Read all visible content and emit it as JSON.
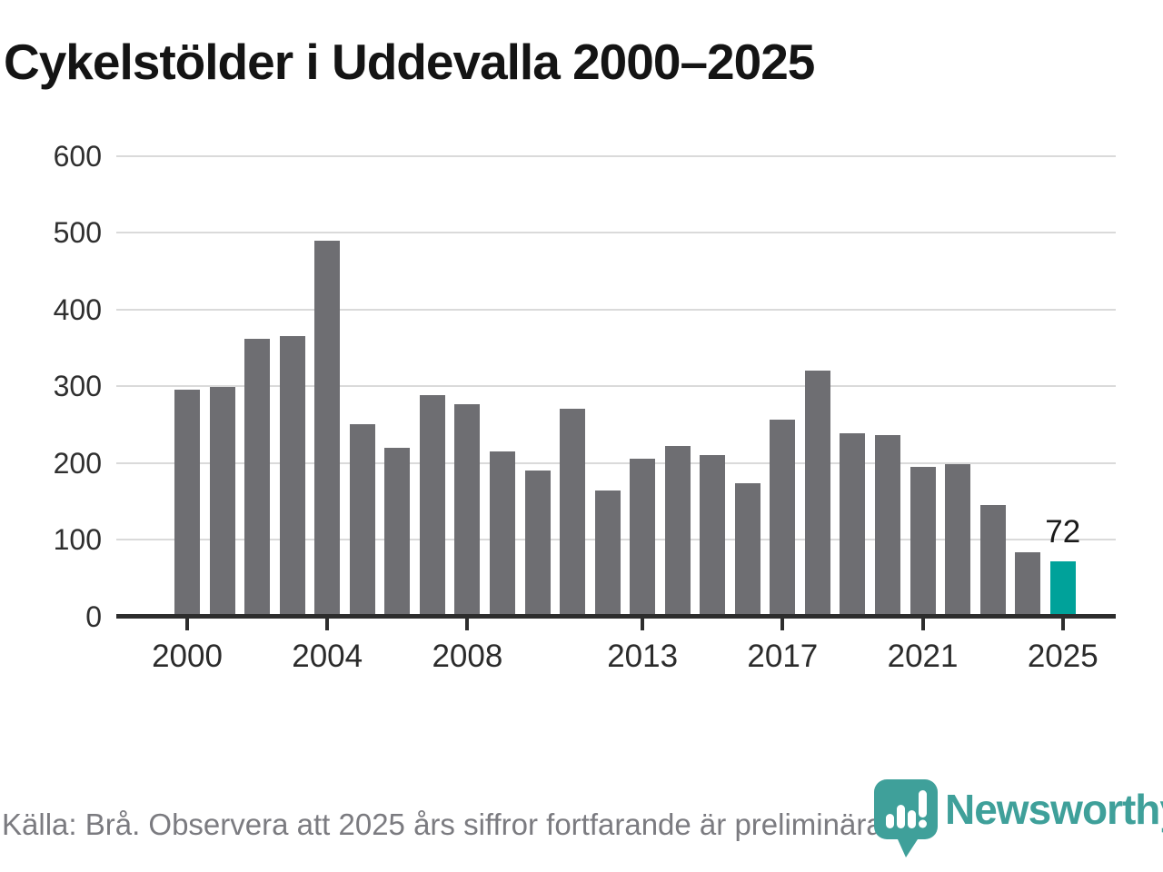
{
  "title": "Cykelstölder i Uddevalla 2000–2025",
  "footer": {
    "source_note": "Källa: Brå. Observera att 2025 års siffror fortfarande är preliminära."
  },
  "branding": {
    "logo_text": "Newsworthy",
    "logo_color": "#3fa09a"
  },
  "colors": {
    "bar": "#6e6e72",
    "highlight": "#00a29a",
    "gridline": "#dadada",
    "axis": "#2d2d2d"
  },
  "chart_data": {
    "type": "bar",
    "title": "Cykelstölder i Uddevalla 2000–2025",
    "xlabel": "",
    "ylabel": "",
    "ylim": [
      0,
      600
    ],
    "yticks": [
      0,
      100,
      200,
      300,
      400,
      500,
      600
    ],
    "xticks": [
      2000,
      2004,
      2008,
      2013,
      2017,
      2021,
      2025
    ],
    "grid": "horizontal",
    "legend": "none",
    "x": [
      2000,
      2001,
      2002,
      2003,
      2004,
      2005,
      2006,
      2007,
      2008,
      2009,
      2010,
      2011,
      2012,
      2013,
      2014,
      2015,
      2016,
      2017,
      2018,
      2019,
      2020,
      2021,
      2022,
      2023,
      2024,
      2025
    ],
    "values": [
      296,
      299,
      362,
      365,
      490,
      251,
      220,
      288,
      276,
      215,
      190,
      271,
      164,
      205,
      222,
      210,
      173,
      256,
      320,
      239,
      236,
      195,
      198,
      145,
      84,
      72
    ],
    "highlight_year": 2025,
    "highlight_value_label": "72"
  }
}
